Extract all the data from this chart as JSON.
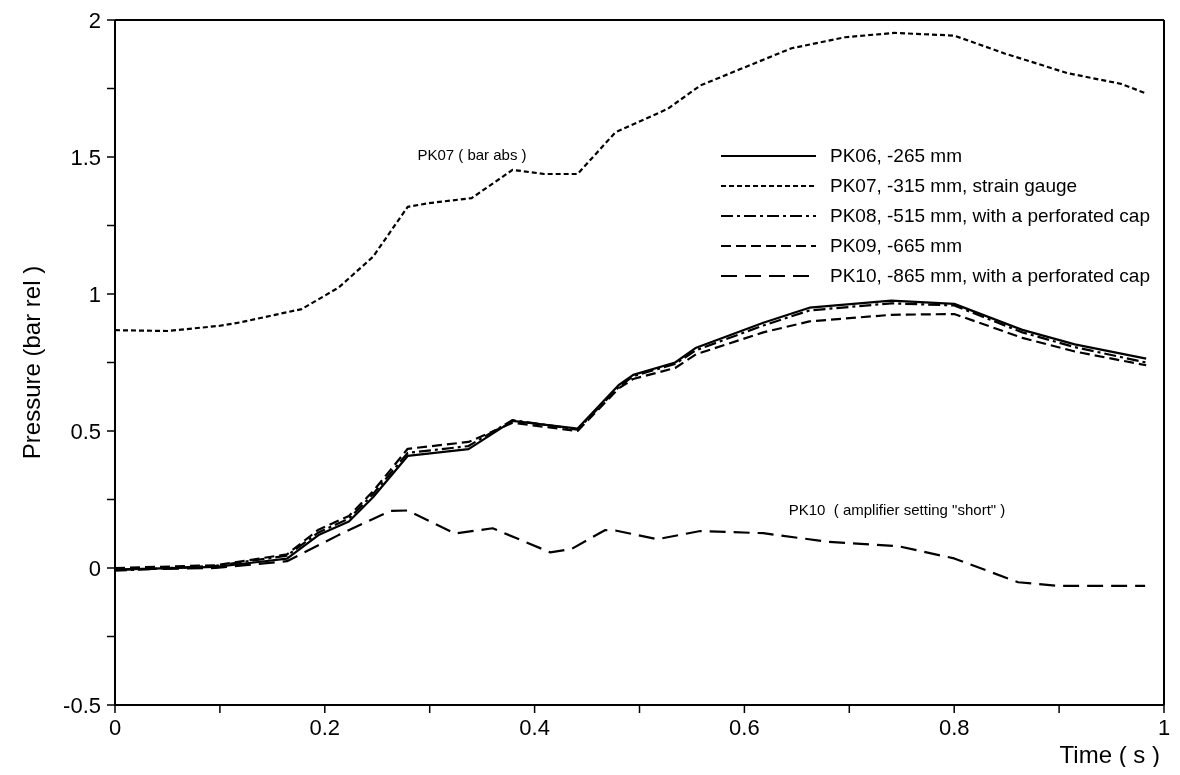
{
  "chart_data": {
    "type": "line",
    "xlabel": "Time  ( s )",
    "ylabel": "Pressure  (bar rel )",
    "xlim": [
      0,
      1
    ],
    "ylim": [
      -0.5,
      2
    ],
    "xticks": [
      0,
      {
        "value": 0.1,
        "label": null
      },
      0.2,
      {
        "value": 0.3,
        "label": null
      },
      0.4,
      {
        "value": 0.5,
        "label": null
      },
      0.6,
      {
        "value": 0.7,
        "label": null
      },
      0.8,
      {
        "value": 0.9,
        "label": null
      },
      1
    ],
    "yticks": [
      -0.5,
      {
        "value": -0.25,
        "label": null
      },
      0,
      {
        "value": 0.25,
        "label": null
      },
      0.5,
      {
        "value": 0.75,
        "label": null
      },
      1,
      {
        "value": 1.25,
        "label": null
      },
      1.5,
      {
        "value": 1.75,
        "label": null
      },
      2
    ],
    "grid": false,
    "legend": "top right",
    "marker": "none",
    "annotations": [
      "PK07 ( bar abs )",
      "PK10  ( amplifier setting \"short\" )"
    ],
    "series": [
      {
        "name": "PK06, -265 mm",
        "color": "#000000",
        "line_style": "solid",
        "x": [
          0,
          0.096,
          0.164,
          0.194,
          0.223,
          0.246,
          0.279,
          0.337,
          0.379,
          0.441,
          0.48,
          0.494,
          0.534,
          0.554,
          0.618,
          0.662,
          0.74,
          0.8,
          0.865,
          0.915,
          0.983
        ],
        "values": [
          -0.006,
          0.004,
          0.034,
          0.12,
          0.17,
          0.258,
          0.409,
          0.434,
          0.537,
          0.509,
          0.667,
          0.705,
          0.75,
          0.804,
          0.895,
          0.95,
          0.976,
          0.964,
          0.869,
          0.816,
          0.764
        ]
      },
      {
        "name": "PK07, -315 mm, strain gauge",
        "color": "#000000",
        "line_style": "dotted",
        "x": [
          0,
          0.05,
          0.1,
          0.12,
          0.178,
          0.213,
          0.246,
          0.279,
          0.298,
          0.34,
          0.379,
          0.409,
          0.441,
          0.477,
          0.527,
          0.558,
          0.595,
          0.645,
          0.696,
          0.743,
          0.8,
          0.848,
          0.908,
          0.959,
          0.983
        ],
        "values": [
          0.868,
          0.865,
          0.884,
          0.897,
          0.945,
          1.023,
          1.136,
          1.318,
          1.331,
          1.35,
          1.453,
          1.438,
          1.438,
          1.59,
          1.676,
          1.761,
          1.819,
          1.897,
          1.937,
          1.953,
          1.943,
          1.878,
          1.806,
          1.767,
          1.732
        ]
      },
      {
        "name": "PK08, -515 mm, with a perforated cap",
        "color": "#000000",
        "line_style": "dashed",
        "x": [
          0,
          0.096,
          0.164,
          0.194,
          0.223,
          0.246,
          0.279,
          0.337,
          0.379,
          0.441,
          0.48,
          0.494,
          0.534,
          0.554,
          0.618,
          0.662,
          0.74,
          0.8,
          0.865,
          0.915,
          0.983
        ],
        "values": [
          -0.01,
          0.008,
          0.045,
          0.13,
          0.18,
          0.27,
          0.42,
          0.445,
          0.54,
          0.505,
          0.66,
          0.7,
          0.745,
          0.795,
          0.885,
          0.94,
          0.966,
          0.958,
          0.86,
          0.806,
          0.75
        ]
      },
      {
        "name": "PK09, -665 mm",
        "color": "#000000",
        "line_style": "dashed",
        "x": [
          0,
          0.096,
          0.164,
          0.194,
          0.223,
          0.246,
          0.279,
          0.337,
          0.379,
          0.441,
          0.48,
          0.494,
          0.534,
          0.554,
          0.618,
          0.662,
          0.74,
          0.8,
          0.865,
          0.915,
          0.983
        ],
        "values": [
          0,
          0.01,
          0.05,
          0.14,
          0.19,
          0.28,
          0.435,
          0.46,
          0.53,
          0.5,
          0.655,
          0.69,
          0.73,
          0.78,
          0.86,
          0.9,
          0.924,
          0.927,
          0.84,
          0.79,
          0.74
        ]
      },
      {
        "name": "PK10, -865 mm, with a perforated cap",
        "color": "#000000",
        "line_style": "dashed",
        "x": [
          0,
          0.096,
          0.164,
          0.213,
          0.262,
          0.279,
          0.324,
          0.36,
          0.415,
          0.435,
          0.467,
          0.477,
          0.517,
          0.558,
          0.618,
          0.679,
          0.746,
          0.8,
          0.861,
          0.898,
          0.982
        ],
        "values": [
          -0.006,
          0,
          0.025,
          0.12,
          0.208,
          0.21,
          0.126,
          0.145,
          0.057,
          0.069,
          0.138,
          0.137,
          0.105,
          0.135,
          0.127,
          0.096,
          0.08,
          0.035,
          -0.052,
          -0.065,
          -0.065
        ]
      }
    ]
  }
}
